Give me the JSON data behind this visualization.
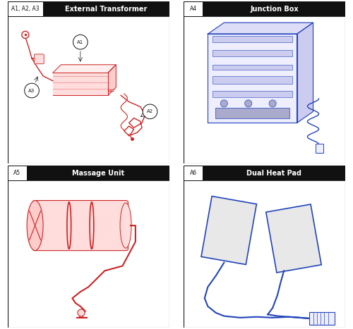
{
  "panels": [
    {
      "id": "A1, A2, A3",
      "title": "External Transformer",
      "row": 0,
      "col": 0
    },
    {
      "id": "A4",
      "title": "Junction Box",
      "row": 0,
      "col": 1
    },
    {
      "id": "A5",
      "title": "Massage Unit",
      "row": 1,
      "col": 0
    },
    {
      "id": "A6",
      "title": "Dual Heat Pad",
      "row": 1,
      "col": 1
    }
  ],
  "red": "#CC2222",
  "red_light": "#FFEEEE",
  "red_face": "#FFDDDD",
  "blue": "#2244BB",
  "blue_light": "#EEEEFF",
  "black": "#111111",
  "white": "#FFFFFF",
  "gray": "#CCCCCC",
  "gray_light": "#E8E8E8",
  "header_bg": "#111111",
  "fig_bg": "#FFFFFF"
}
